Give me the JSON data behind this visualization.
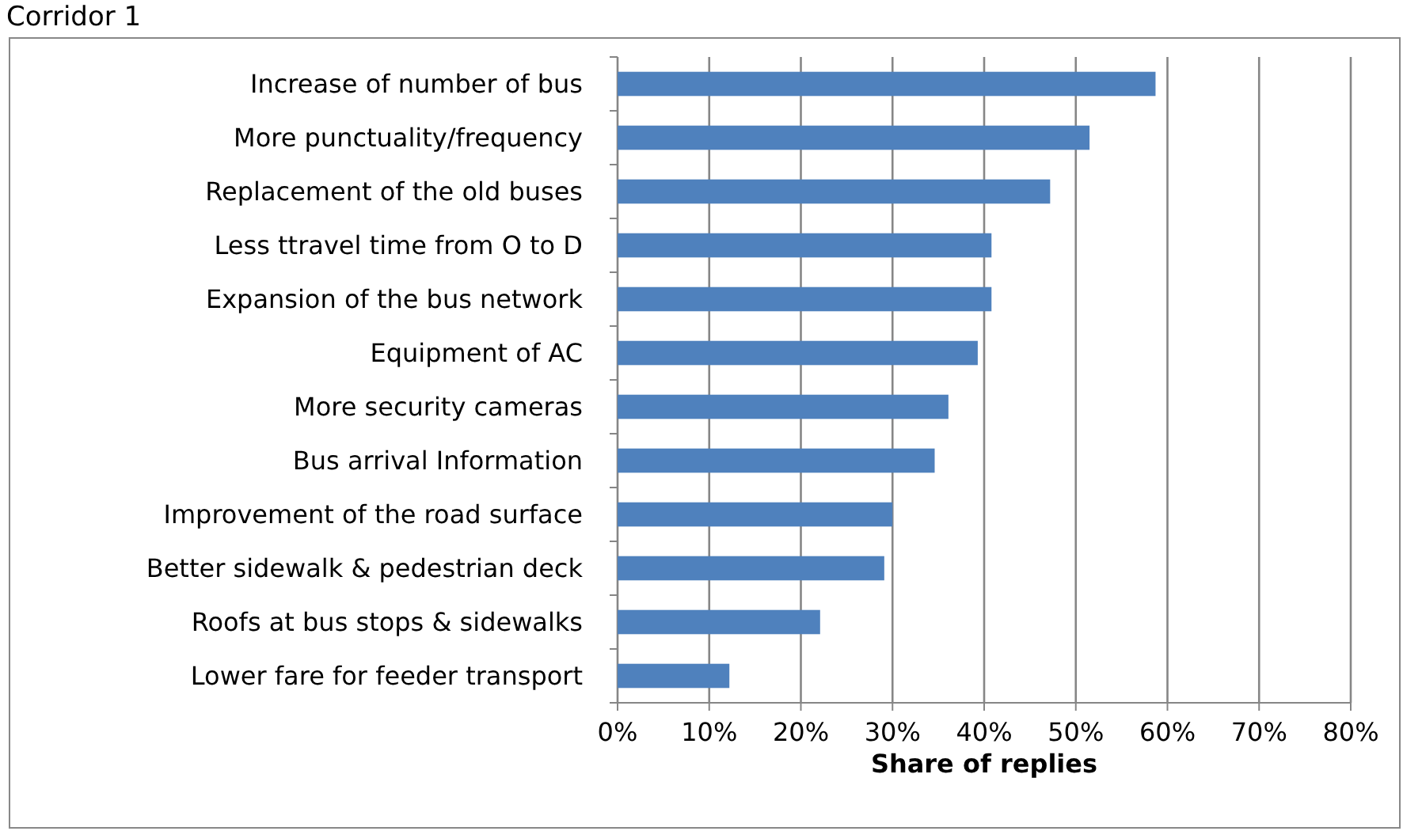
{
  "chart_data": {
    "type": "bar",
    "orientation": "horizontal",
    "title": "Corridor 1",
    "xlabel": "Share of replies",
    "categories": [
      "Increase of number of bus",
      "More punctuality/frequency",
      "Replacement of the old buses",
      "Less ttravel time from O to D",
      "Expansion of the bus network",
      "Equipment of AC",
      "More security cameras",
      "Bus arrival Information",
      "Improvement of the road surface",
      "Better sidewalk & pedestrian deck",
      "Roofs at bus stops & sidewalks",
      "Lower fare for feeder transport"
    ],
    "values": [
      0.587,
      0.515,
      0.472,
      0.408,
      0.408,
      0.393,
      0.361,
      0.346,
      0.3,
      0.291,
      0.221,
      0.122
    ],
    "color": "#4f81bd",
    "xlim": [
      0,
      0.8
    ],
    "xticks": [
      {
        "value": 0,
        "label": "0%"
      },
      {
        "value": 0.1,
        "label": "10%"
      },
      {
        "value": 0.2,
        "label": "20%"
      },
      {
        "value": 0.3,
        "label": "30%"
      },
      {
        "value": 0.4,
        "label": "40%"
      },
      {
        "value": 0.5,
        "label": "50%"
      },
      {
        "value": 0.6,
        "label": "60%"
      },
      {
        "value": 0.7,
        "label": "70%"
      },
      {
        "value": 0.8,
        "label": "80%"
      }
    ],
    "grid": "x"
  }
}
